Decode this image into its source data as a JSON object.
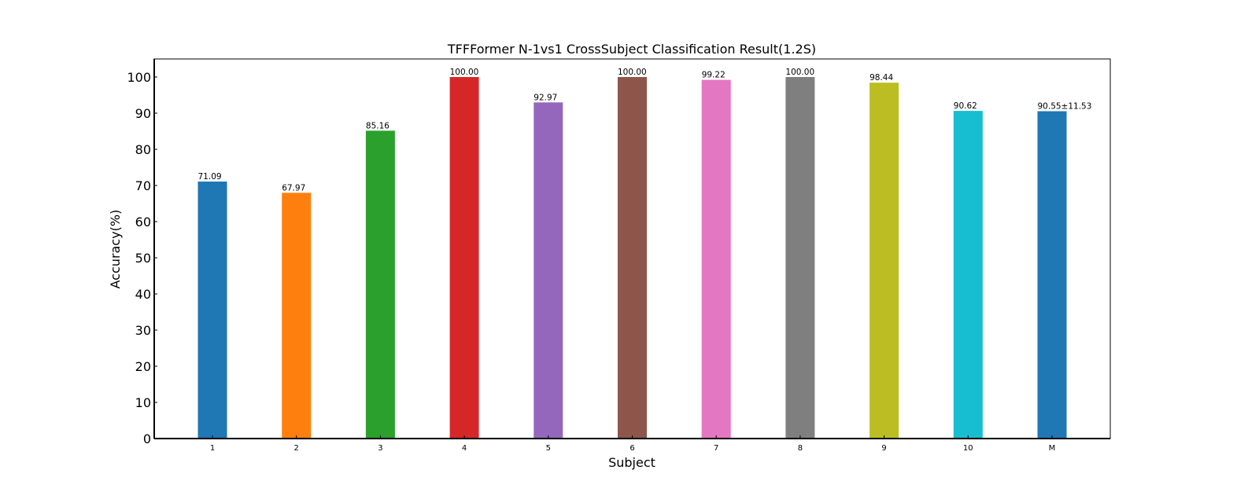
{
  "chart_data": {
    "type": "bar",
    "title": "TFFFormer N-1vs1 CrossSubject Classification Result(1.2S)",
    "xlabel": "Subject",
    "ylabel": "Accuracy(%)",
    "ylim": [
      0,
      105
    ],
    "yticks": [
      0,
      10,
      20,
      30,
      40,
      50,
      60,
      70,
      80,
      90,
      100
    ],
    "categories": [
      "1",
      "2",
      "3",
      "4",
      "5",
      "6",
      "7",
      "8",
      "9",
      "10",
      "M"
    ],
    "values": [
      71.09,
      67.97,
      85.16,
      100.0,
      92.97,
      100.0,
      99.22,
      100.0,
      98.44,
      90.62,
      90.55
    ],
    "data_labels": [
      "71.09",
      "67.97",
      "85.16",
      "100.00",
      "92.97",
      "100.00",
      "99.22",
      "100.00",
      "98.44",
      "90.62",
      "90.55±11.53"
    ],
    "colors": [
      "#1f77b4",
      "#ff7f0e",
      "#2ca02c",
      "#d62728",
      "#9467bd",
      "#8c564b",
      "#e377c2",
      "#7f7f7f",
      "#bcbd22",
      "#17becf",
      "#1f77b4"
    ],
    "label_colors": [
      "#000000",
      "#000000",
      "#000000",
      "#000000",
      "#000000",
      "#000000",
      "#000000",
      "#000000",
      "#000000",
      "#000000",
      "#ff0000"
    ],
    "grid": false,
    "legend": "none"
  }
}
